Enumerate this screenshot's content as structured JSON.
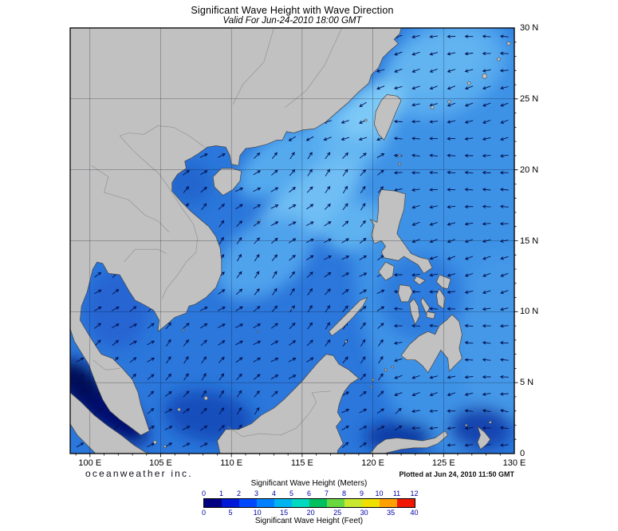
{
  "title": "Significant Wave Height with Wave Direction",
  "subtitle": "Valid For Jun-24-2010 18:00 GMT",
  "credit": "oceanweather inc.",
  "plotted": "Plotted at Jun 24, 2010 11:50 GMT",
  "axes": {
    "lon_ticks": [
      "100 E",
      "105 E",
      "110 E",
      "115 E",
      "120 E",
      "125 E",
      "130 E"
    ],
    "lon_values": [
      100,
      105,
      110,
      115,
      120,
      125,
      130
    ],
    "lat_ticks": [
      "30 N",
      "25 N",
      "20 N",
      "15 N",
      "10 N",
      "5 N",
      "0"
    ],
    "lat_values": [
      30,
      25,
      20,
      15,
      10,
      5,
      0
    ],
    "lon_range": [
      98.6,
      130
    ],
    "lat_range": [
      0,
      30
    ]
  },
  "legend": {
    "meters_label": "Significant Wave Height (Meters)",
    "feet_label": "Significant Wave Height (Feet)",
    "meters_ticks": [
      0,
      1,
      2,
      3,
      4,
      5,
      6,
      7,
      8,
      9,
      10,
      11,
      12
    ],
    "feet_ticks": [
      0,
      5,
      10,
      15,
      20,
      25,
      30,
      35,
      40
    ],
    "tick_color": "#0000A0",
    "colors": [
      "#000080",
      "#0018D8",
      "#0048FF",
      "#0080FF",
      "#00B4F0",
      "#00D8C0",
      "#00C060",
      "#68D840",
      "#C8E830",
      "#F0E000",
      "#FFA000",
      "#F01800"
    ]
  },
  "map": {
    "ocean_base": "#2B77DB",
    "land_color": "#C1C1C1",
    "coast_color": "#454545",
    "arrow_color": "#001050",
    "grid_color": "rgba(10,10,30,0.5)"
  }
}
